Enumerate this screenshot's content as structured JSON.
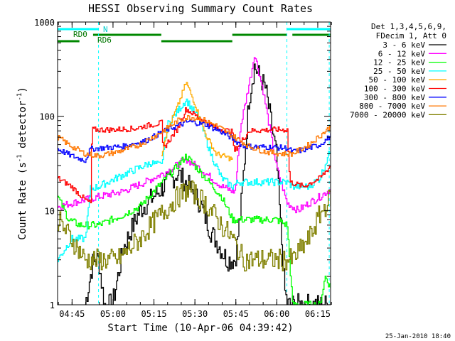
{
  "chart_data": {
    "type": "line",
    "title": "HESSI Observing Summary Count Rates",
    "xlabel": "Start Time (10-Apr-06 04:39:42)",
    "ylabel_main": "Count Rate (s",
    "ylabel_sup1": "-1",
    "ylabel_mid": " detector",
    "ylabel_sup2": "-1",
    "ylabel_end": ")",
    "yscale": "log",
    "ylim": [
      1,
      1000
    ],
    "xlim_minutes": [
      0,
      100
    ],
    "x_tick_labels": [
      "04:45",
      "05:00",
      "05:15",
      "05:30",
      "05:45",
      "06:00",
      "06:15"
    ],
    "y_tick_labels": [
      "1",
      "10",
      "100",
      "1000"
    ],
    "legend_position": "right, outside plot",
    "legend_header": [
      "Det 1,3,4,5,6,9,",
      "FDecim 1, Att 0"
    ],
    "footer_timestamp": "25-Jan-2010 18:40",
    "flag_labels": {
      "night": "N",
      "rd0": "RD0",
      "rd6": "RD6"
    },
    "flag_segments": {
      "cyan_top": [
        [
          0,
          15
        ],
        [
          84,
          100
        ]
      ],
      "green_rd0": [
        [
          13,
          38
        ],
        [
          64,
          84
        ],
        [
          86,
          100
        ]
      ],
      "green_rd6": [
        [
          0,
          8
        ],
        [
          38,
          64
        ]
      ]
    },
    "dashed_markers": [
      15,
      84,
      99.5
    ],
    "series": [
      {
        "name": "3 - 6 keV",
        "color": "#000000",
        "noise": 0.12,
        "points": [
          [
            10,
            1
          ],
          [
            13,
            3
          ],
          [
            15,
            3
          ],
          [
            17,
            1
          ],
          [
            20,
            1
          ],
          [
            24,
            4
          ],
          [
            30,
            10
          ],
          [
            36,
            15
          ],
          [
            44,
            25
          ],
          [
            48,
            18
          ],
          [
            52,
            12
          ],
          [
            56,
            6
          ],
          [
            62,
            3
          ],
          [
            65,
            3
          ],
          [
            67,
            10
          ],
          [
            70,
            150
          ],
          [
            72,
            340
          ],
          [
            76,
            200
          ],
          [
            80,
            40
          ],
          [
            83,
            1.5
          ],
          [
            84,
            1
          ],
          [
            86,
            1
          ],
          [
            100,
            1
          ]
        ]
      },
      {
        "name": "6 - 12 keV",
        "color": "#ff00ff",
        "noise": 0.04,
        "points": [
          [
            0,
            11
          ],
          [
            10,
            13
          ],
          [
            15,
            14
          ],
          [
            24,
            16
          ],
          [
            32,
            20
          ],
          [
            40,
            26
          ],
          [
            47,
            35
          ],
          [
            52,
            28
          ],
          [
            60,
            18
          ],
          [
            64,
            16
          ],
          [
            65,
            16
          ],
          [
            67,
            80
          ],
          [
            71,
            300
          ],
          [
            72,
            460
          ],
          [
            75,
            200
          ],
          [
            80,
            30
          ],
          [
            83,
            15
          ],
          [
            84,
            12
          ],
          [
            88,
            10
          ],
          [
            92,
            12
          ],
          [
            96,
            14
          ],
          [
            100,
            17
          ]
        ]
      },
      {
        "name": "12 - 25 keV",
        "color": "#00ff00",
        "noise": 0.04,
        "points": [
          [
            0,
            14
          ],
          [
            4,
            8
          ],
          [
            8,
            7
          ],
          [
            15,
            7
          ],
          [
            24,
            9
          ],
          [
            30,
            11
          ],
          [
            36,
            17
          ],
          [
            44,
            30
          ],
          [
            47,
            38
          ],
          [
            52,
            26
          ],
          [
            60,
            14
          ],
          [
            64,
            8
          ],
          [
            66,
            8
          ],
          [
            70,
            8
          ],
          [
            80,
            8
          ],
          [
            84,
            7
          ],
          [
            86,
            1
          ],
          [
            96,
            1
          ],
          [
            98,
            2
          ],
          [
            100,
            1.5
          ]
        ]
      },
      {
        "name": "25 - 50 keV",
        "color": "#00ffff",
        "noise": 0.04,
        "points": [
          [
            0,
            3
          ],
          [
            5,
            5
          ],
          [
            10,
            5
          ],
          [
            12,
            17
          ],
          [
            15,
            18
          ],
          [
            24,
            24
          ],
          [
            34,
            32
          ],
          [
            38,
            30
          ],
          [
            40,
            80
          ],
          [
            47,
            150
          ],
          [
            52,
            90
          ],
          [
            56,
            40
          ],
          [
            60,
            22
          ],
          [
            64,
            18
          ],
          [
            66,
            20
          ],
          [
            75,
            20
          ],
          [
            80,
            20
          ],
          [
            84,
            20
          ],
          [
            86,
            18
          ],
          [
            92,
            18
          ],
          [
            96,
            22
          ],
          [
            100,
            45
          ]
        ]
      },
      {
        "name": "50 - 100 keV",
        "color": "#ffaa00",
        "noise": 0.03,
        "points": [
          [
            38,
            40
          ],
          [
            40,
            70
          ],
          [
            44,
            130
          ],
          [
            47,
            230
          ],
          [
            50,
            140
          ],
          [
            54,
            65
          ],
          [
            58,
            40
          ],
          [
            64,
            35
          ]
        ]
      },
      {
        "name": "100 - 300 keV",
        "color": "#ff0000",
        "noise": 0.03,
        "points": [
          [
            0,
            22
          ],
          [
            5,
            18
          ],
          [
            10,
            13
          ],
          [
            12,
            12
          ],
          [
            12.5,
            72
          ],
          [
            20,
            72
          ],
          [
            28,
            74
          ],
          [
            33,
            80
          ],
          [
            38,
            85
          ],
          [
            38.5,
            45
          ],
          [
            44,
            75
          ],
          [
            47,
            120
          ],
          [
            52,
            95
          ],
          [
            58,
            75
          ],
          [
            64,
            68
          ],
          [
            64.5,
            42
          ],
          [
            70,
            70
          ],
          [
            78,
            72
          ],
          [
            84,
            72
          ],
          [
            85,
            20
          ],
          [
            90,
            18
          ],
          [
            96,
            22
          ],
          [
            100,
            30
          ]
        ]
      },
      {
        "name": "300 - 800 keV",
        "color": "#0000ff",
        "noise": 0.03,
        "points": [
          [
            0,
            45
          ],
          [
            5,
            38
          ],
          [
            10,
            34
          ],
          [
            12,
            45
          ],
          [
            16,
            46
          ],
          [
            24,
            48
          ],
          [
            32,
            55
          ],
          [
            40,
            72
          ],
          [
            48,
            88
          ],
          [
            54,
            82
          ],
          [
            60,
            68
          ],
          [
            64,
            58
          ],
          [
            68,
            48
          ],
          [
            78,
            47
          ],
          [
            84,
            46
          ],
          [
            86,
            42
          ],
          [
            90,
            44
          ],
          [
            96,
            50
          ],
          [
            100,
            62
          ]
        ]
      },
      {
        "name": "800 - 7000 keV",
        "color": "#ff7700",
        "noise": 0.03,
        "points": [
          [
            0,
            60
          ],
          [
            5,
            48
          ],
          [
            10,
            40
          ],
          [
            15,
            38
          ],
          [
            22,
            42
          ],
          [
            30,
            50
          ],
          [
            38,
            68
          ],
          [
            44,
            90
          ],
          [
            48,
            98
          ],
          [
            52,
            95
          ],
          [
            58,
            80
          ],
          [
            64,
            62
          ],
          [
            70,
            48
          ],
          [
            76,
            42
          ],
          [
            82,
            40
          ],
          [
            86,
            40
          ],
          [
            92,
            50
          ],
          [
            96,
            62
          ],
          [
            100,
            78
          ]
        ]
      },
      {
        "name": "7000 - 20000 keV",
        "color": "#808000",
        "noise": 0.12,
        "points": [
          [
            0,
            8
          ],
          [
            5,
            5
          ],
          [
            10,
            3
          ],
          [
            15,
            3
          ],
          [
            22,
            3
          ],
          [
            30,
            5
          ],
          [
            36,
            8
          ],
          [
            44,
            14
          ],
          [
            48,
            17
          ],
          [
            54,
            12
          ],
          [
            60,
            7
          ],
          [
            64,
            5
          ],
          [
            68,
            3
          ],
          [
            80,
            3
          ],
          [
            86,
            3
          ],
          [
            92,
            5
          ],
          [
            96,
            9
          ],
          [
            100,
            14
          ]
        ]
      }
    ]
  }
}
